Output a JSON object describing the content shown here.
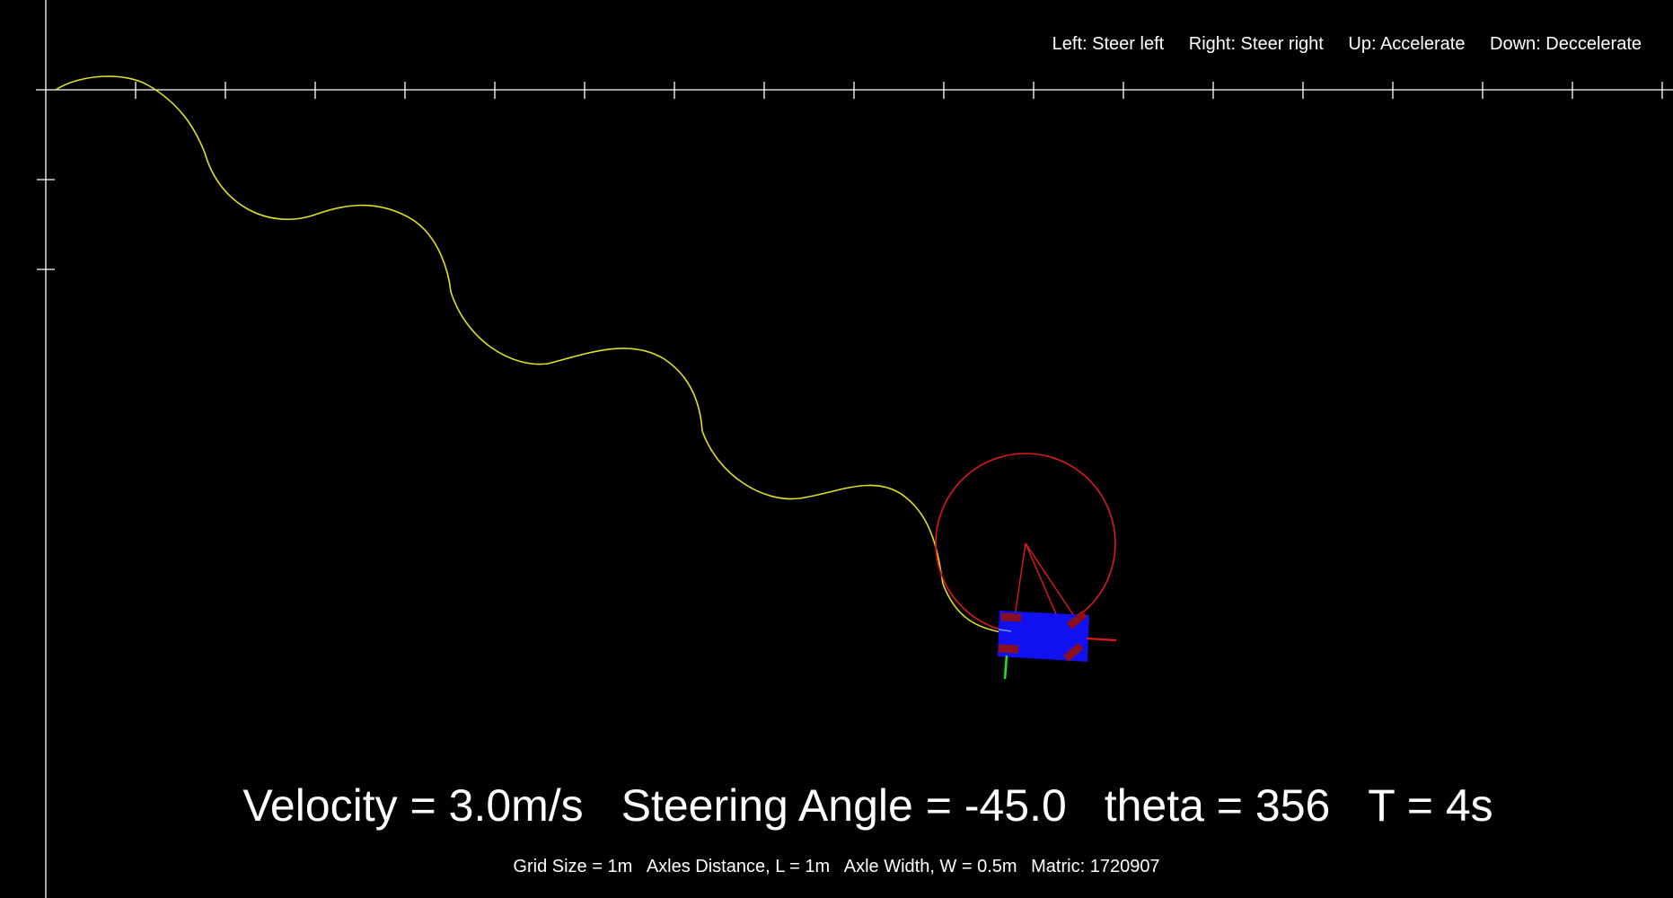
{
  "controls": {
    "left": "Left: Steer left",
    "right": "Right: Steer right",
    "up": "Up: Accelerate",
    "down": "Down: Deccelerate"
  },
  "status": {
    "velocity": "Velocity = 3.0m/s",
    "steering": "Steering Angle = -45.0",
    "theta": "theta = 356",
    "time": "T = 4s"
  },
  "info": {
    "grid": "Grid Size = 1m",
    "axles_distance": "Axles Distance, L = 1m",
    "axle_width": "Axle Width, W = 0.5m",
    "matric": "Matric: 1720907"
  },
  "colors": {
    "background": "#000000",
    "axes": "#ffffff",
    "trajectory": "#e0e020",
    "turning_circle": "#e01818",
    "car_body": "#1010f0",
    "wheel": "#8a1020",
    "x_axis_arrow": "#e01818",
    "y_axis_arrow": "#20e020"
  }
}
